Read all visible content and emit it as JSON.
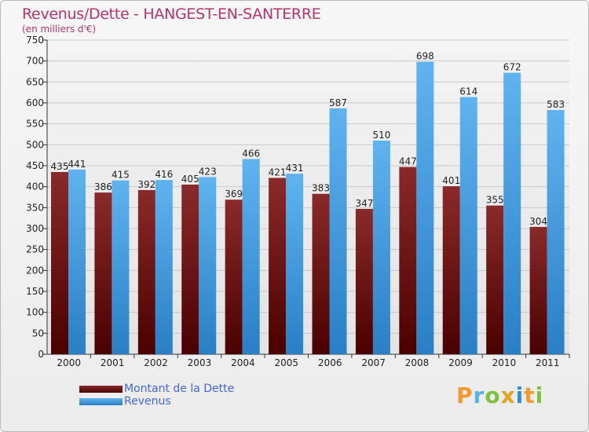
{
  "chart_data": {
    "type": "bar",
    "title": "Revenus/Dette - HANGEST-EN-SANTERRE",
    "subtitle": "(en milliers d'€)",
    "categories": [
      "2000",
      "2001",
      "2002",
      "2003",
      "2004",
      "2005",
      "2006",
      "2007",
      "2008",
      "2009",
      "2010",
      "2011"
    ],
    "series": [
      {
        "name": "Montant de la Dette",
        "color": "#7a1a1a",
        "values": [
          435,
          386,
          392,
          405,
          369,
          421,
          383,
          347,
          447,
          401,
          355,
          304
        ]
      },
      {
        "name": "Revenus",
        "color": "#4ba3e6",
        "values": [
          441,
          415,
          416,
          423,
          466,
          431,
          587,
          510,
          698,
          614,
          672,
          583
        ]
      }
    ],
    "y_ticks": [
      0,
      50,
      100,
      150,
      200,
      250,
      300,
      350,
      400,
      450,
      500,
      550,
      600,
      650,
      700,
      750
    ],
    "ylim": [
      0,
      750
    ],
    "grid": true,
    "legend_position": "bottom-left"
  },
  "logo": {
    "letters": [
      "P",
      "r",
      "o",
      "x",
      "i",
      "t",
      "i"
    ],
    "colors": [
      "#f29a2e",
      "#5bb3e6",
      "#7cc242",
      "#e6a21e",
      "#2f8fd4",
      "#f29a2e",
      "#7cc242"
    ]
  }
}
